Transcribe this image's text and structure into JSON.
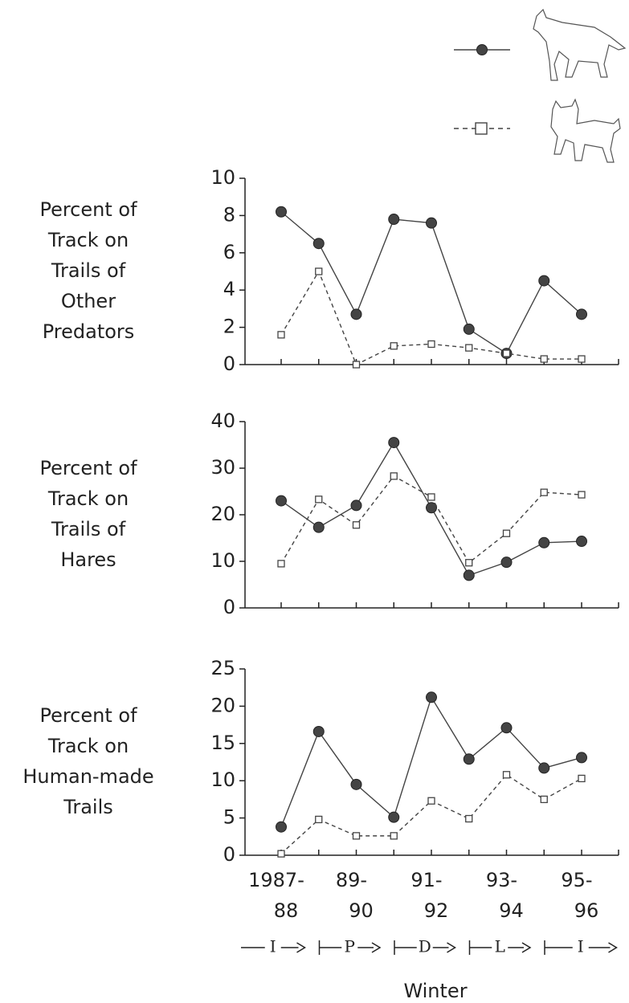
{
  "chart_data": [
    {
      "type": "line",
      "ylabel": [
        "Percent of",
        "Track on",
        "Trails of",
        "Other",
        "Predators"
      ],
      "ylim": [
        0,
        10
      ],
      "yticks": [
        0,
        2,
        4,
        6,
        8,
        10
      ],
      "series": [
        {
          "color": "#444",
          "marker": "circle",
          "dashed": false,
          "values": [
            8.2,
            6.5,
            2.7,
            7.8,
            7.6,
            1.9,
            0.6,
            4.5,
            2.7
          ]
        },
        {
          "color": "#444",
          "marker": "square",
          "dashed": true,
          "values": [
            1.6,
            5.0,
            0.0,
            1.0,
            1.1,
            0.9,
            0.6,
            0.3,
            0.3
          ]
        }
      ]
    },
    {
      "type": "line",
      "ylabel": [
        "Percent of",
        "Track on",
        "Trails of",
        "Hares"
      ],
      "ylim": [
        0,
        40
      ],
      "yticks": [
        0,
        10,
        20,
        30,
        40
      ],
      "series": [
        {
          "color": "#444",
          "marker": "circle",
          "dashed": false,
          "values": [
            23,
            17.3,
            22,
            35.5,
            21.5,
            7,
            9.8,
            14,
            14.3
          ]
        },
        {
          "color": "#444",
          "marker": "square",
          "dashed": true,
          "values": [
            9.5,
            23.3,
            17.8,
            28.3,
            23.8,
            9.7,
            16,
            24.8,
            24.3
          ]
        }
      ]
    },
    {
      "type": "line",
      "ylabel": [
        "Percent of",
        "Track on",
        "Human-made",
        "Trails"
      ],
      "ylim": [
        0,
        25
      ],
      "yticks": [
        0,
        5,
        10,
        15,
        20,
        25
      ],
      "categories": [
        [
          "1987-",
          "88"
        ],
        null,
        [
          "89-",
          "90"
        ],
        null,
        [
          "91-",
          "92"
        ],
        null,
        [
          "93-",
          "94"
        ],
        null,
        [
          "95-",
          "96"
        ]
      ],
      "phases": [
        "I",
        "P",
        "D",
        "L",
        "I"
      ],
      "xlabel": "Winter",
      "series": [
        {
          "color": "#444",
          "marker": "circle",
          "dashed": false,
          "values": [
            3.8,
            16.6,
            9.5,
            5.1,
            21.2,
            12.9,
            17.1,
            11.7,
            13.1
          ]
        },
        {
          "color": "#444",
          "marker": "square",
          "dashed": true,
          "values": [
            0.2,
            4.8,
            2.6,
            2.6,
            7.3,
            4.9,
            10.8,
            7.5,
            10.3
          ]
        }
      ]
    }
  ]
}
